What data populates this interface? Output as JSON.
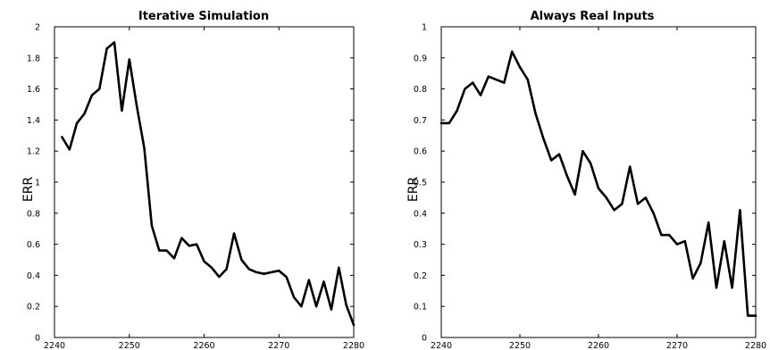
{
  "chart_data": [
    {
      "type": "line",
      "title": "Iterative Simulation",
      "xlabel": "",
      "ylabel": "ERR",
      "xlim": [
        2240,
        2280
      ],
      "ylim": [
        0,
        2
      ],
      "xticks": [
        2240,
        2250,
        2260,
        2270,
        2280
      ],
      "yticks": [
        0,
        0.2,
        0.4,
        0.6,
        0.8,
        1,
        1.2,
        1.4,
        1.6,
        1.8,
        2
      ],
      "grid": false,
      "series": [
        {
          "x": [
            2241,
            2242,
            2243,
            2244,
            2245,
            2246,
            2247,
            2248,
            2249,
            2250,
            2251,
            2252,
            2253,
            2254,
            2255,
            2256,
            2257,
            2258,
            2259,
            2260,
            2261,
            2262,
            2263,
            2264,
            2265,
            2266,
            2267,
            2268,
            2269,
            2270,
            2271,
            2272,
            2273,
            2274,
            2275,
            2276,
            2277,
            2278,
            2279,
            2280
          ],
          "y": [
            1.29,
            1.21,
            1.38,
            1.44,
            1.56,
            1.6,
            1.86,
            1.9,
            1.46,
            1.79,
            1.49,
            1.22,
            0.72,
            0.56,
            0.56,
            0.51,
            0.64,
            0.59,
            0.6,
            0.49,
            0.45,
            0.39,
            0.44,
            0.67,
            0.5,
            0.44,
            0.42,
            0.41,
            0.42,
            0.43,
            0.39,
            0.26,
            0.2,
            0.37,
            0.2,
            0.36,
            0.18,
            0.45,
            0.21,
            0.08
          ],
          "color": "#000000"
        }
      ]
    },
    {
      "type": "line",
      "title": "Always Real Inputs",
      "xlabel": "",
      "ylabel": "ERR",
      "xlim": [
        2240,
        2280
      ],
      "ylim": [
        0,
        1
      ],
      "xticks": [
        2240,
        2250,
        2260,
        2270,
        2280
      ],
      "yticks": [
        0,
        0.1,
        0.2,
        0.3,
        0.4,
        0.5,
        0.6,
        0.7,
        0.8,
        0.9,
        1
      ],
      "grid": false,
      "series": [
        {
          "x": [
            2240,
            2241,
            2242,
            2243,
            2244,
            2245,
            2246,
            2247,
            2248,
            2249,
            2250,
            2251,
            2252,
            2253,
            2254,
            2255,
            2256,
            2257,
            2258,
            2259,
            2260,
            2261,
            2262,
            2263,
            2264,
            2265,
            2266,
            2267,
            2268,
            2269,
            2270,
            2271,
            2272,
            2273,
            2274,
            2275,
            2276,
            2277,
            2278,
            2279,
            2280
          ],
          "y": [
            0.69,
            0.69,
            0.73,
            0.8,
            0.82,
            0.78,
            0.84,
            0.83,
            0.82,
            0.92,
            0.87,
            0.83,
            0.72,
            0.64,
            0.57,
            0.59,
            0.52,
            0.46,
            0.6,
            0.56,
            0.48,
            0.45,
            0.41,
            0.43,
            0.55,
            0.43,
            0.45,
            0.4,
            0.33,
            0.33,
            0.3,
            0.31,
            0.19,
            0.24,
            0.37,
            0.16,
            0.31,
            0.16,
            0.41,
            0.07,
            0.07
          ],
          "color": "#000000"
        }
      ]
    }
  ]
}
